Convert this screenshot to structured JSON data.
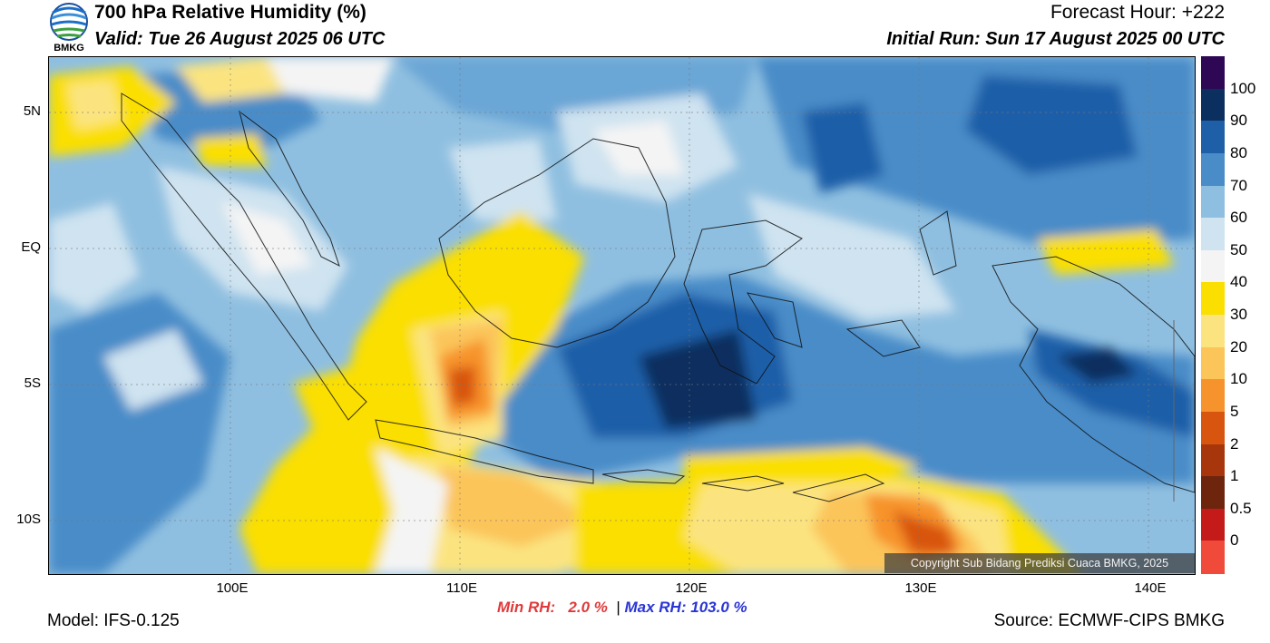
{
  "header": {
    "title": "700 hPa Relative Humidity (%)",
    "valid": "Valid: Tue 26 August 2025 06 UTC",
    "forecast_hour": "Forecast Hour: +222",
    "initial_run": "Initial Run: Sun 17 August 2025 00 UTC",
    "logo_text": "BMKG"
  },
  "axes": {
    "lat_labels": [
      "5N",
      "EQ",
      "5S",
      "10S"
    ],
    "lon_labels": [
      "100E",
      "110E",
      "120E",
      "130E",
      "140E"
    ]
  },
  "colorbar": {
    "labels": [
      "100",
      "90",
      "80",
      "70",
      "60",
      "50",
      "40",
      "30",
      "20",
      "10",
      "5",
      "2",
      "1",
      "0.5",
      "0"
    ],
    "colors": [
      "#2e0854",
      "#0b2f5e",
      "#1f5fa8",
      "#4a8cc8",
      "#8fbfe0",
      "#cfe3f0",
      "#f4f4f4",
      "#fadf00",
      "#fbe480",
      "#fbc55a",
      "#f7932c",
      "#d85510",
      "#a8360c",
      "#6e250e",
      "#c41a1a",
      "#f04a3a"
    ]
  },
  "stats": {
    "min_label": "Min RH:",
    "min_value": "2.0 %",
    "separator": "|",
    "max_label": "Max RH:",
    "max_value": "103.0 %"
  },
  "footer": {
    "model": "Model: IFS-0.125",
    "source": "Source: ECMWF-CIPS BMKG",
    "copyright": "Copyright Sub Bidang Prediksi Cuaca BMKG, 2025"
  }
}
